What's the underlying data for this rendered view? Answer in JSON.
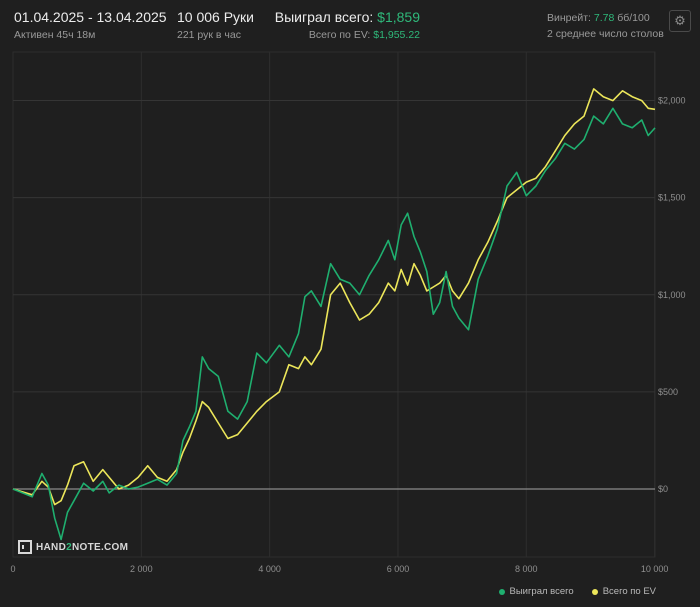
{
  "header": {
    "date_range": "01.04.2025 - 13.04.2025",
    "active_time": "Активен 45ч 18м",
    "hands": "10 006 Руки",
    "hands_per_hour": "221 рук в час",
    "won_label": "Выиграл всего:",
    "won_value": "$1,859",
    "ev_label": "Всего по EV:",
    "ev_value": "$1,955.22",
    "winrate_label": "Винрейт:",
    "winrate_value": "7.78",
    "winrate_unit": "бб/100",
    "avg_tables": "2 среднее число столов"
  },
  "icons": {
    "settings": "gear-icon",
    "logo": "hand2note-logo-icon"
  },
  "watermark": {
    "prefix": "HAND",
    "digit": "2",
    "suffix": "NOTE.COM"
  },
  "colors": {
    "background": "#1f1f1f",
    "won_series": "#1faf6f",
    "ev_series": "#ece65a",
    "accent_green": "#2fb87a"
  },
  "chart_data": {
    "type": "line",
    "xlim": [
      0,
      10006
    ],
    "ylim": [
      -350,
      2250
    ],
    "x_ticks": [
      0,
      2000,
      4000,
      6000,
      8000,
      10000
    ],
    "x_tick_labels": [
      "0",
      "2 000",
      "4 000",
      "6 000",
      "8 000",
      "10 000"
    ],
    "y_ticks": [
      0,
      500,
      1000,
      1500,
      2000
    ],
    "y_tick_labels": [
      "$0",
      "$500",
      "$1,000",
      "$1,500",
      "$2,000"
    ],
    "grid": true,
    "legend_position": "bottom-right",
    "series": [
      {
        "name": "Выиграл всего",
        "color": "#1faf6f",
        "points": [
          [
            0,
            0
          ],
          [
            300,
            -40
          ],
          [
            450,
            80
          ],
          [
            550,
            20
          ],
          [
            650,
            -150
          ],
          [
            750,
            -260
          ],
          [
            850,
            -120
          ],
          [
            950,
            -60
          ],
          [
            1100,
            30
          ],
          [
            1250,
            -10
          ],
          [
            1400,
            40
          ],
          [
            1500,
            -20
          ],
          [
            1650,
            20
          ],
          [
            1800,
            0
          ],
          [
            1950,
            10
          ],
          [
            2100,
            30
          ],
          [
            2250,
            50
          ],
          [
            2400,
            20
          ],
          [
            2550,
            80
          ],
          [
            2650,
            250
          ],
          [
            2750,
            320
          ],
          [
            2850,
            400
          ],
          [
            2950,
            680
          ],
          [
            3050,
            620
          ],
          [
            3200,
            580
          ],
          [
            3350,
            400
          ],
          [
            3500,
            360
          ],
          [
            3650,
            450
          ],
          [
            3800,
            700
          ],
          [
            3950,
            650
          ],
          [
            4150,
            740
          ],
          [
            4300,
            680
          ],
          [
            4450,
            800
          ],
          [
            4550,
            990
          ],
          [
            4650,
            1020
          ],
          [
            4800,
            940
          ],
          [
            4950,
            1160
          ],
          [
            5100,
            1080
          ],
          [
            5250,
            1060
          ],
          [
            5400,
            1000
          ],
          [
            5550,
            1100
          ],
          [
            5700,
            1180
          ],
          [
            5850,
            1280
          ],
          [
            5950,
            1180
          ],
          [
            6050,
            1360
          ],
          [
            6150,
            1420
          ],
          [
            6250,
            1300
          ],
          [
            6350,
            1220
          ],
          [
            6450,
            1120
          ],
          [
            6550,
            900
          ],
          [
            6650,
            960
          ],
          [
            6750,
            1120
          ],
          [
            6850,
            940
          ],
          [
            6950,
            880
          ],
          [
            7100,
            820
          ],
          [
            7250,
            1080
          ],
          [
            7400,
            1200
          ],
          [
            7550,
            1340
          ],
          [
            7700,
            1560
          ],
          [
            7850,
            1630
          ],
          [
            8000,
            1510
          ],
          [
            8150,
            1560
          ],
          [
            8300,
            1640
          ],
          [
            8450,
            1700
          ],
          [
            8600,
            1780
          ],
          [
            8750,
            1750
          ],
          [
            8900,
            1800
          ],
          [
            9050,
            1920
          ],
          [
            9200,
            1880
          ],
          [
            9350,
            1960
          ],
          [
            9500,
            1880
          ],
          [
            9650,
            1860
          ],
          [
            9800,
            1900
          ],
          [
            9900,
            1820
          ],
          [
            10006,
            1859
          ]
        ]
      },
      {
        "name": "Всего по EV",
        "color": "#ece65a",
        "points": [
          [
            0,
            0
          ],
          [
            300,
            -30
          ],
          [
            450,
            40
          ],
          [
            550,
            10
          ],
          [
            650,
            -80
          ],
          [
            750,
            -60
          ],
          [
            850,
            20
          ],
          [
            950,
            120
          ],
          [
            1100,
            140
          ],
          [
            1250,
            40
          ],
          [
            1400,
            100
          ],
          [
            1500,
            60
          ],
          [
            1650,
            0
          ],
          [
            1800,
            20
          ],
          [
            1950,
            60
          ],
          [
            2100,
            120
          ],
          [
            2250,
            60
          ],
          [
            2400,
            40
          ],
          [
            2550,
            100
          ],
          [
            2650,
            190
          ],
          [
            2750,
            260
          ],
          [
            2850,
            350
          ],
          [
            2950,
            450
          ],
          [
            3050,
            420
          ],
          [
            3200,
            340
          ],
          [
            3350,
            260
          ],
          [
            3500,
            280
          ],
          [
            3650,
            340
          ],
          [
            3800,
            400
          ],
          [
            3950,
            450
          ],
          [
            4150,
            500
          ],
          [
            4300,
            640
          ],
          [
            4450,
            620
          ],
          [
            4550,
            680
          ],
          [
            4650,
            640
          ],
          [
            4800,
            720
          ],
          [
            4950,
            1000
          ],
          [
            5100,
            1060
          ],
          [
            5250,
            960
          ],
          [
            5400,
            870
          ],
          [
            5550,
            900
          ],
          [
            5700,
            960
          ],
          [
            5850,
            1060
          ],
          [
            5950,
            1020
          ],
          [
            6050,
            1130
          ],
          [
            6150,
            1050
          ],
          [
            6250,
            1160
          ],
          [
            6350,
            1100
          ],
          [
            6450,
            1020
          ],
          [
            6550,
            1040
          ],
          [
            6650,
            1060
          ],
          [
            6750,
            1100
          ],
          [
            6850,
            1020
          ],
          [
            6950,
            980
          ],
          [
            7100,
            1060
          ],
          [
            7250,
            1180
          ],
          [
            7400,
            1270
          ],
          [
            7550,
            1380
          ],
          [
            7700,
            1500
          ],
          [
            7850,
            1540
          ],
          [
            8000,
            1580
          ],
          [
            8150,
            1600
          ],
          [
            8300,
            1660
          ],
          [
            8450,
            1740
          ],
          [
            8600,
            1820
          ],
          [
            8750,
            1880
          ],
          [
            8900,
            1920
          ],
          [
            9050,
            2060
          ],
          [
            9200,
            2020
          ],
          [
            9350,
            2000
          ],
          [
            9500,
            2050
          ],
          [
            9650,
            2020
          ],
          [
            9800,
            2000
          ],
          [
            9900,
            1960
          ],
          [
            10006,
            1955
          ]
        ]
      }
    ]
  }
}
